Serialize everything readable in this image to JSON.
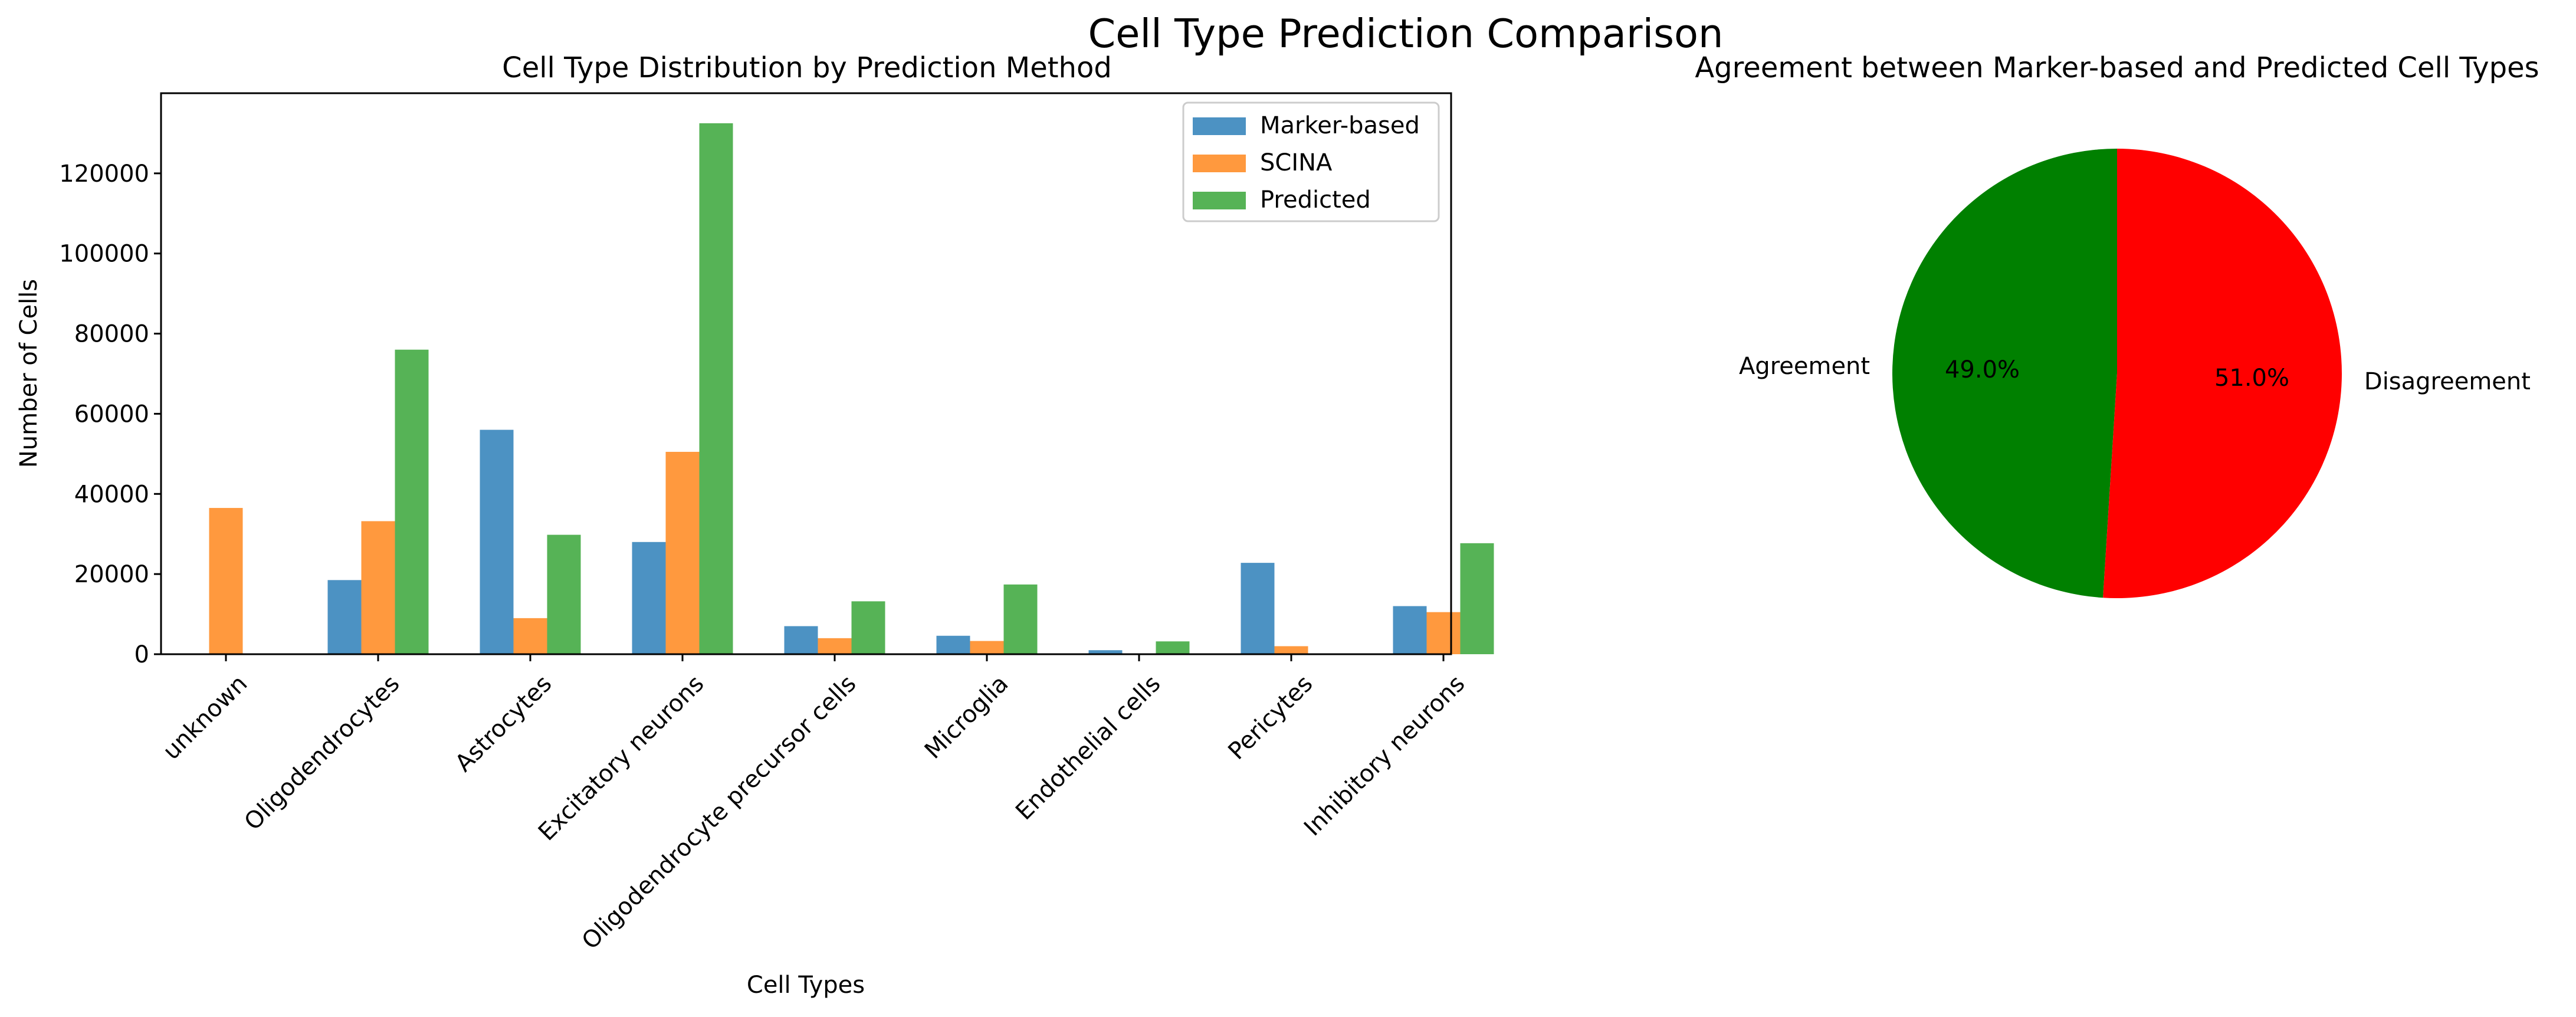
{
  "figure": {
    "suptitle": "Cell Type Prediction Comparison"
  },
  "chart_data": [
    {
      "type": "bar",
      "title": "Cell Type Distribution by Prediction Method",
      "xlabel": "Cell Types",
      "ylabel": "Number of Cells",
      "ylim": [
        0,
        140000
      ],
      "yticks": [
        0,
        20000,
        40000,
        60000,
        80000,
        100000,
        120000
      ],
      "grid": false,
      "legend_position": "top-right",
      "categories": [
        "unknown",
        "Oligodendrocytes",
        "Astrocytes",
        "Excitatory neurons",
        "Oligodendrocyte precursor cells",
        "Microglia",
        "Endothelial cells",
        "Pericytes",
        "Inhibitory neurons"
      ],
      "series": [
        {
          "name": "Marker-based",
          "color": "#1f77b4",
          "values": [
            0,
            18500,
            56000,
            28000,
            7000,
            4600,
            1000,
            22800,
            12000
          ]
        },
        {
          "name": "SCINA",
          "color": "#ff7f0e",
          "values": [
            36500,
            33200,
            9000,
            50500,
            4000,
            3300,
            0,
            2000,
            10500
          ]
        },
        {
          "name": "Predicted",
          "color": "#2ca02c",
          "values": [
            0,
            76000,
            29800,
            132500,
            13200,
            17400,
            3200,
            0,
            27700
          ]
        }
      ],
      "bar_alpha": 0.8
    },
    {
      "type": "pie",
      "title": "Agreement between Marker-based and Predicted Cell Types",
      "slices": [
        {
          "label": "Agreement",
          "value": 49.0,
          "pct_label": "49.0%",
          "color": "#008000"
        },
        {
          "label": "Disagreement",
          "value": 51.0,
          "pct_label": "51.0%",
          "color": "#ff0000"
        }
      ],
      "start_angle_deg": 90,
      "direction": "counterclockwise"
    }
  ]
}
